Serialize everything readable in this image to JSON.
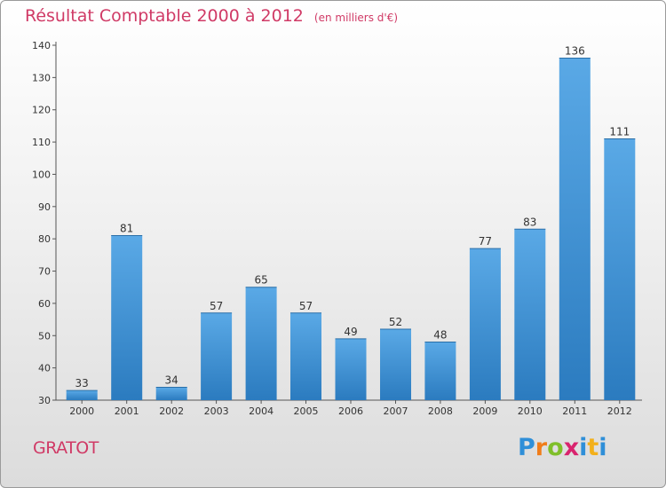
{
  "header": {
    "title": "Résultat Comptable 2000 à 2012",
    "unit": "(en milliers d'€)"
  },
  "footer": {
    "commune": "GRATOT",
    "logo_letters": [
      "P",
      "r",
      "o",
      "x",
      "i",
      "t",
      "i"
    ],
    "logo_colors": [
      "#2f8fd8",
      "#f07d1a",
      "#7fbf2a",
      "#d9246e",
      "#2f8fd8",
      "#f3b01b",
      "#2f8fd8"
    ]
  },
  "colors": {
    "bar_top": "#5aa9e6",
    "bar_bottom": "#2b7bbf",
    "title": "#d03a66"
  },
  "chart_data": {
    "type": "bar",
    "title": "Résultat Comptable 2000 à 2012",
    "xlabel": "",
    "ylabel": "",
    "categories": [
      "2000",
      "2001",
      "2002",
      "2003",
      "2004",
      "2005",
      "2006",
      "2007",
      "2008",
      "2009",
      "2010",
      "2011",
      "2012"
    ],
    "values": [
      33,
      81,
      34,
      57,
      65,
      57,
      49,
      52,
      48,
      77,
      83,
      136,
      111
    ],
    "ylim": [
      30,
      140
    ],
    "yticks": [
      30,
      40,
      50,
      60,
      70,
      80,
      90,
      100,
      110,
      120,
      130,
      140
    ],
    "grid": false,
    "legend": "none"
  }
}
